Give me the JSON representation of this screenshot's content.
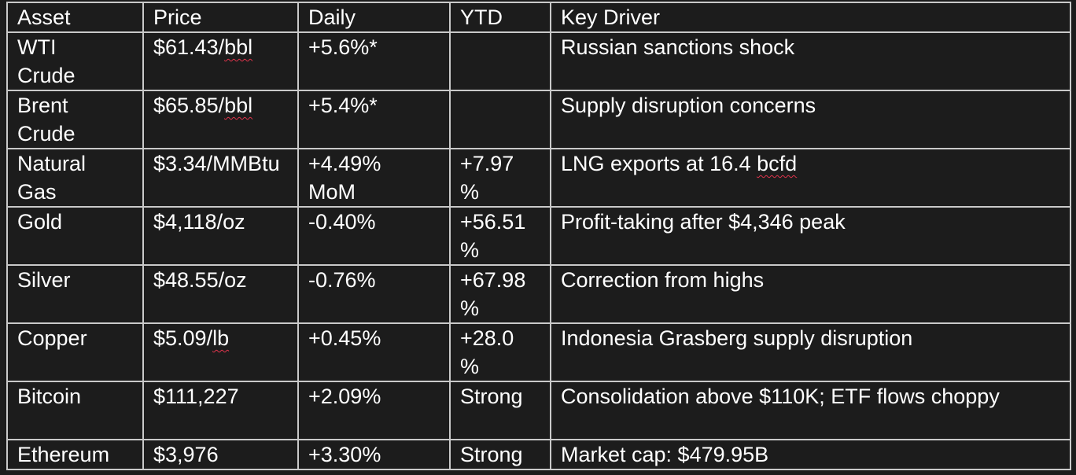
{
  "table": {
    "headers": [
      "Asset",
      "Price",
      "Daily",
      "YTD",
      "Key Driver"
    ],
    "rows": [
      {
        "asset": [
          "WTI",
          "Crude"
        ],
        "price_pre": "$61.43/",
        "price_flag": "bbl",
        "price_post": "",
        "daily": [
          "+5.6%*"
        ],
        "ytd": [],
        "driver_pre": "Russian sanctions shock",
        "driver_flag": "",
        "driver_post": ""
      },
      {
        "asset": [
          "Brent",
          "Crude"
        ],
        "price_pre": "$65.85/",
        "price_flag": "bbl",
        "price_post": "",
        "daily": [
          "+5.4%*"
        ],
        "ytd": [],
        "driver_pre": "Supply disruption concerns",
        "driver_flag": "",
        "driver_post": ""
      },
      {
        "asset": [
          "Natural",
          "Gas"
        ],
        "price_pre": "$3.34/MMB",
        "price_flag": "",
        "price_post": "tu",
        "daily": [
          "+4.49%",
          "MoM"
        ],
        "ytd": [
          "+7.97",
          "%"
        ],
        "driver_pre": "LNG exports at 16.4 ",
        "driver_flag": "bcfd",
        "driver_post": ""
      },
      {
        "asset": [
          "Gold"
        ],
        "price_pre": "$4,118/oz",
        "price_flag": "",
        "price_post": "",
        "daily": [
          "-0.40%"
        ],
        "ytd": [
          "+56.51",
          "%"
        ],
        "driver_pre": "Profit-taking after $4,346 peak",
        "driver_flag": "",
        "driver_post": ""
      },
      {
        "asset": [
          "Silver"
        ],
        "price_pre": "$48.55/oz",
        "price_flag": "",
        "price_post": "",
        "daily": [
          "-0.76%"
        ],
        "ytd": [
          "+67.98",
          "%"
        ],
        "driver_pre": "Correction from highs",
        "driver_flag": "",
        "driver_post": ""
      },
      {
        "asset": [
          "Copper"
        ],
        "price_pre": "$5.09/",
        "price_flag": "lb",
        "price_post": "",
        "daily": [
          "+0.45%"
        ],
        "ytd": [
          "+28.0",
          "%"
        ],
        "driver_pre": "Indonesia Grasberg supply disruption",
        "driver_flag": "",
        "driver_post": ""
      },
      {
        "asset": [
          "Bitcoin"
        ],
        "price_pre": "$111,227",
        "price_flag": "",
        "price_post": "",
        "daily": [
          "+2.09%"
        ],
        "ytd": [
          "Strong"
        ],
        "driver_pre": "Consolidation above $110K; ETF flows choppy",
        "driver_flag": "",
        "driver_post": ""
      },
      {
        "asset": [
          "Ethereum"
        ],
        "price_pre": "$3,976",
        "price_flag": "",
        "price_post": "",
        "daily": [
          "+3.30%"
        ],
        "ytd": [
          "Strong"
        ],
        "driver_pre": "Market cap: $479.95B",
        "driver_flag": "",
        "driver_post": ""
      }
    ]
  },
  "colors": {
    "background": "#1c1c1c",
    "text": "#ffffff",
    "border": "#c9c9c9",
    "spellcheck": "#e0344c"
  }
}
